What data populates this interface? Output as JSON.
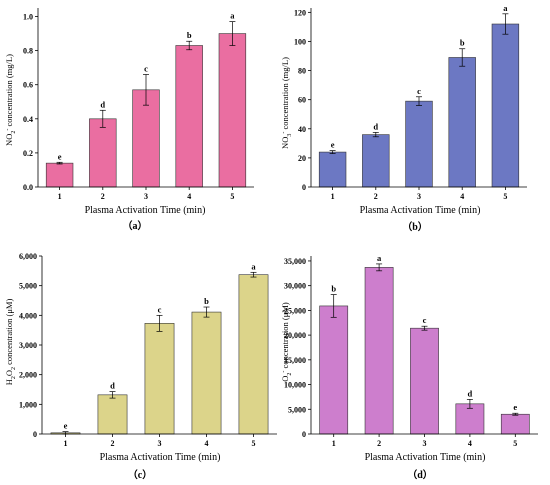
{
  "chart_data": [
    {
      "type": "bar",
      "caption": "（a）",
      "xlabel": "Plasma Activation Time (min)",
      "ylabel_main": "NO",
      "ylabel_sub": "2",
      "ylabel_sup": "-",
      "ylabel_rest": " concentration (mg/L)",
      "categories": [
        "1",
        "2",
        "3",
        "4",
        "5"
      ],
      "values": [
        0.14,
        0.4,
        0.57,
        0.83,
        0.9
      ],
      "errors": [
        0.005,
        0.05,
        0.09,
        0.025,
        0.07
      ],
      "letters": [
        "e",
        "d",
        "c",
        "b",
        "a"
      ],
      "ylim": [
        0,
        1.05
      ],
      "yticks": [
        0.0,
        0.2,
        0.4,
        0.6,
        0.8,
        1.0
      ],
      "ytick_labels": [
        "0.0",
        "0.2",
        "0.4",
        "0.6",
        "0.8",
        "1.0"
      ],
      "color": "#ea6ea1"
    },
    {
      "type": "bar",
      "caption": "（b）",
      "xlabel": "Plasma Activation Time (min)",
      "ylabel_main": "NO",
      "ylabel_sub": "3",
      "ylabel_sup": "-",
      "ylabel_rest": " concentration (mg/L)",
      "categories": [
        "1",
        "2",
        "3",
        "4",
        "5"
      ],
      "values": [
        24,
        36,
        59,
        89,
        112
      ],
      "errors": [
        1,
        1.5,
        3,
        6,
        7
      ],
      "letters": [
        "e",
        "d",
        "c",
        "b",
        "a"
      ],
      "ylim": [
        0,
        123
      ],
      "yticks": [
        0,
        20,
        40,
        60,
        80,
        100,
        120
      ],
      "ytick_labels": [
        "0",
        "20",
        "40",
        "60",
        "80",
        "100",
        "120"
      ],
      "color": "#6c78c3"
    },
    {
      "type": "bar",
      "caption": "（c）",
      "xlabel": "Plasma Activation Time (min)",
      "ylabel_main": "H",
      "ylabel_sub": "2",
      "ylabel_mid": "O",
      "ylabel_sub2": "2",
      "ylabel_rest": " concentration (μM)",
      "categories": [
        "1",
        "2",
        "3",
        "4",
        "5"
      ],
      "values": [
        40,
        1320,
        3730,
        4110,
        5370
      ],
      "errors": [
        40,
        110,
        270,
        170,
        80
      ],
      "letters": [
        "e",
        "d",
        "c",
        "b",
        "a"
      ],
      "ylim": [
        0,
        6000
      ],
      "yticks": [
        0,
        1000,
        2000,
        3000,
        4000,
        5000,
        6000
      ],
      "ytick_labels": [
        "0",
        "1,000",
        "2,000",
        "3,000",
        "4,000",
        "5,000",
        "6,000"
      ],
      "color": "#dcd48a"
    },
    {
      "type": "bar",
      "caption": "（d）",
      "xlabel": "Plasma Activation Time (min)",
      "ylabel_main": "O",
      "ylabel_sub": "2",
      "ylabel_sup": "-",
      "ylabel_rest": " concentration (μM)",
      "categories": [
        "1",
        "2",
        "3",
        "4",
        "5"
      ],
      "values": [
        25900,
        33700,
        21400,
        6100,
        4000
      ],
      "errors": [
        2300,
        700,
        400,
        900,
        200
      ],
      "letters": [
        "b",
        "a",
        "c",
        "d",
        "e"
      ],
      "ylim": [
        0,
        36000
      ],
      "yticks": [
        0,
        5000,
        10000,
        15000,
        20000,
        25000,
        30000,
        35000
      ],
      "ytick_labels": [
        "0",
        "5,000",
        "10,000",
        "15,000",
        "20,000",
        "25,000",
        "30,000",
        "35,000"
      ],
      "color": "#cd7ecd"
    }
  ]
}
